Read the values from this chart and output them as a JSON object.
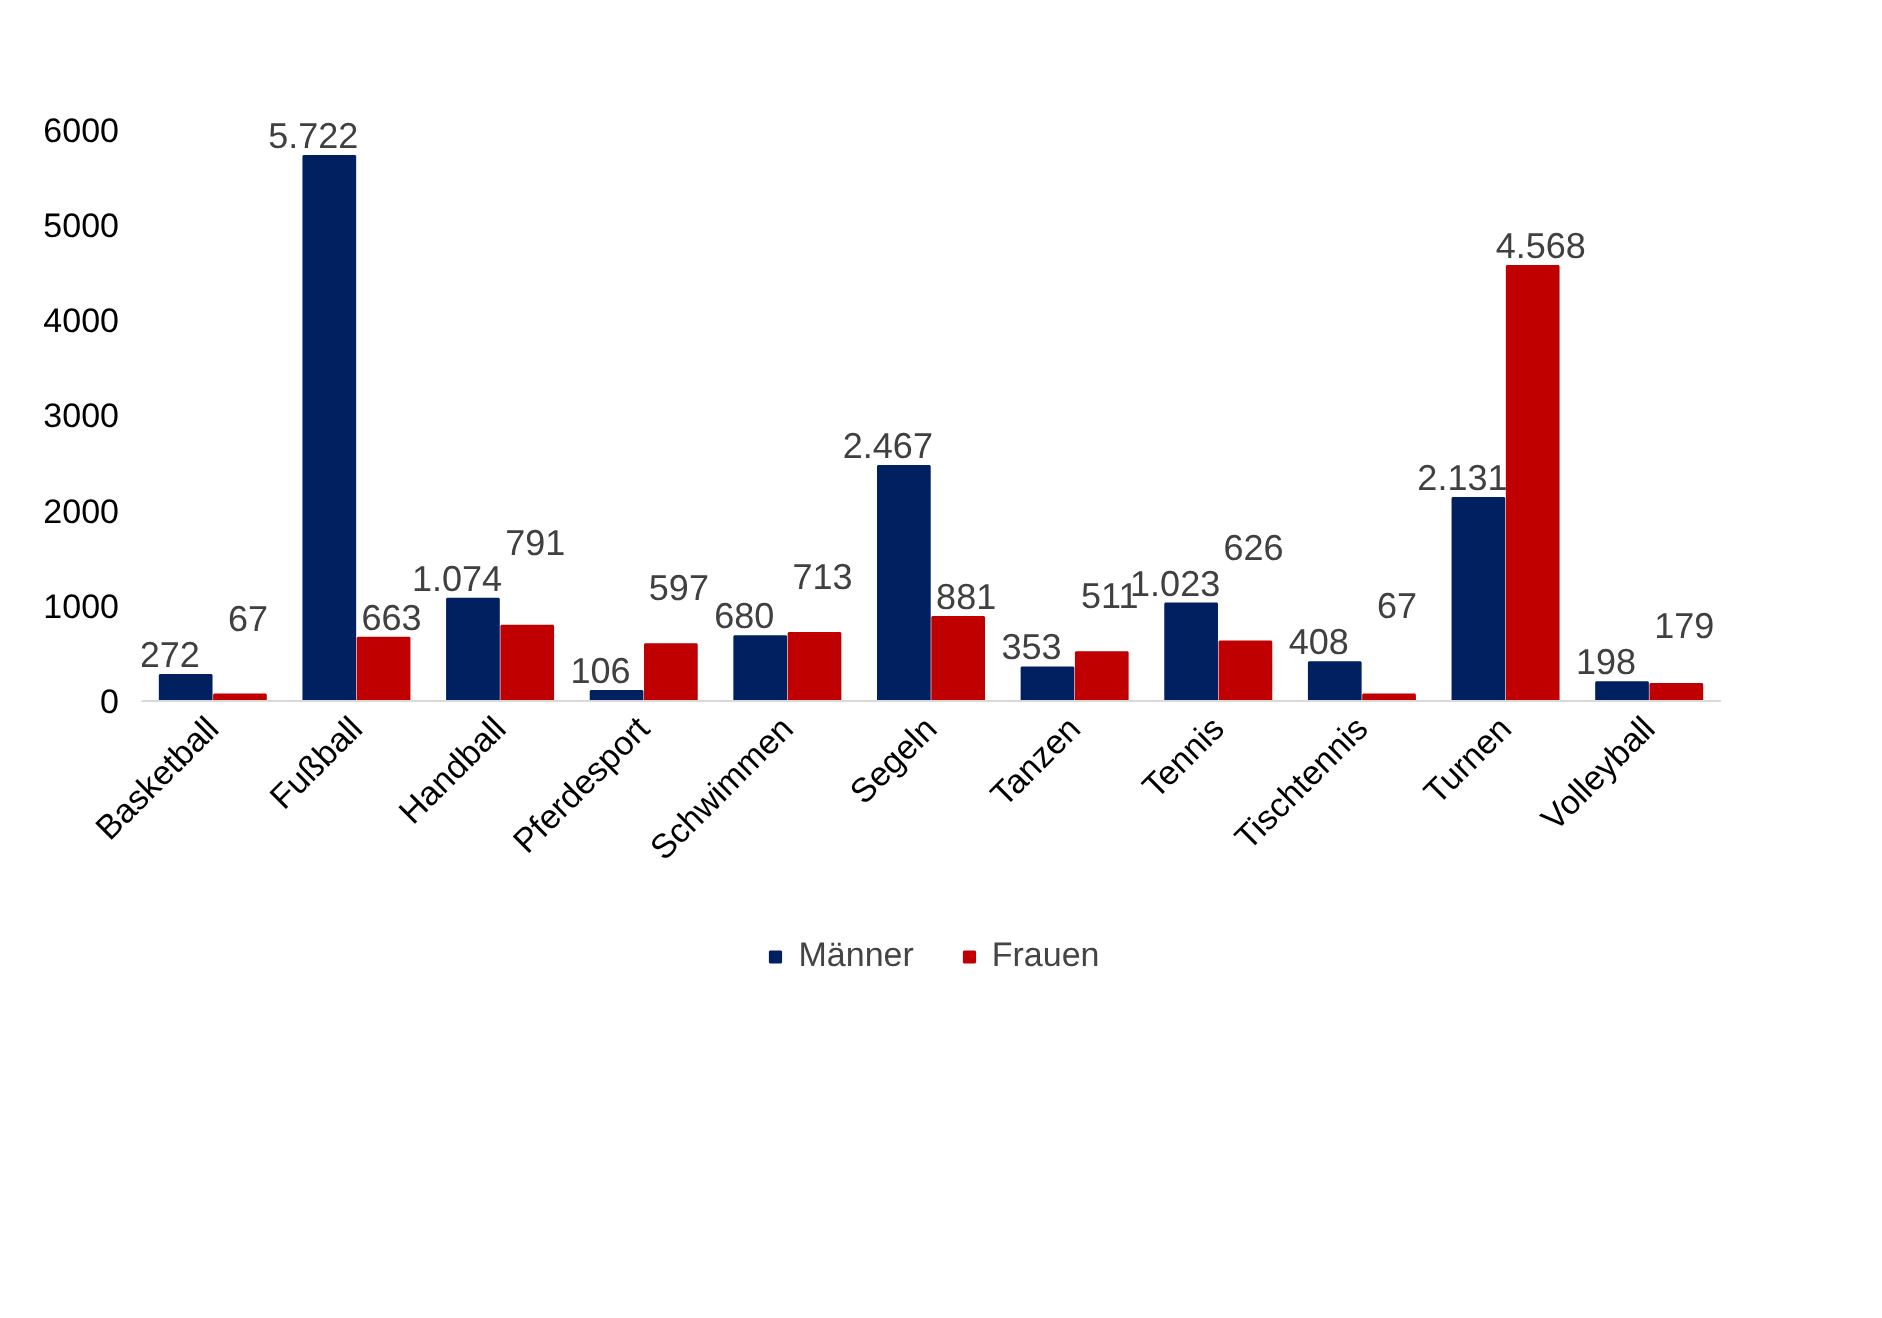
{
  "chart_data": {
    "type": "bar",
    "categories": [
      "Basketball",
      "Fußball",
      "Handball",
      "Pferdesport",
      "Schwimmen",
      "Segeln",
      "Tanzen",
      "Tennis",
      "Tischtennis",
      "Turnen",
      "Volleyball"
    ],
    "series": [
      {
        "name": "Männer",
        "color": "#002060",
        "values": [
          272,
          5722,
          1074,
          106,
          680,
          2467,
          353,
          1023,
          408,
          2131,
          198
        ],
        "value_labels": [
          "272",
          "5.722",
          "1.074",
          "106",
          "680",
          "2.467",
          "353",
          "1.023",
          "408",
          "2.131",
          "198"
        ]
      },
      {
        "name": "Frauen",
        "color": "#c00000",
        "values": [
          67,
          663,
          791,
          597,
          713,
          881,
          511,
          626,
          67,
          4568,
          179
        ],
        "value_labels": [
          "67",
          "663",
          "791",
          "597",
          "713",
          "881",
          "511",
          "626",
          "67",
          "4.568",
          "179"
        ]
      }
    ],
    "ylim": [
      0,
      6300
    ],
    "yticks": [
      0,
      1000,
      2000,
      3000,
      4000,
      5000,
      6000
    ],
    "grid": false,
    "legend": "bottom"
  }
}
